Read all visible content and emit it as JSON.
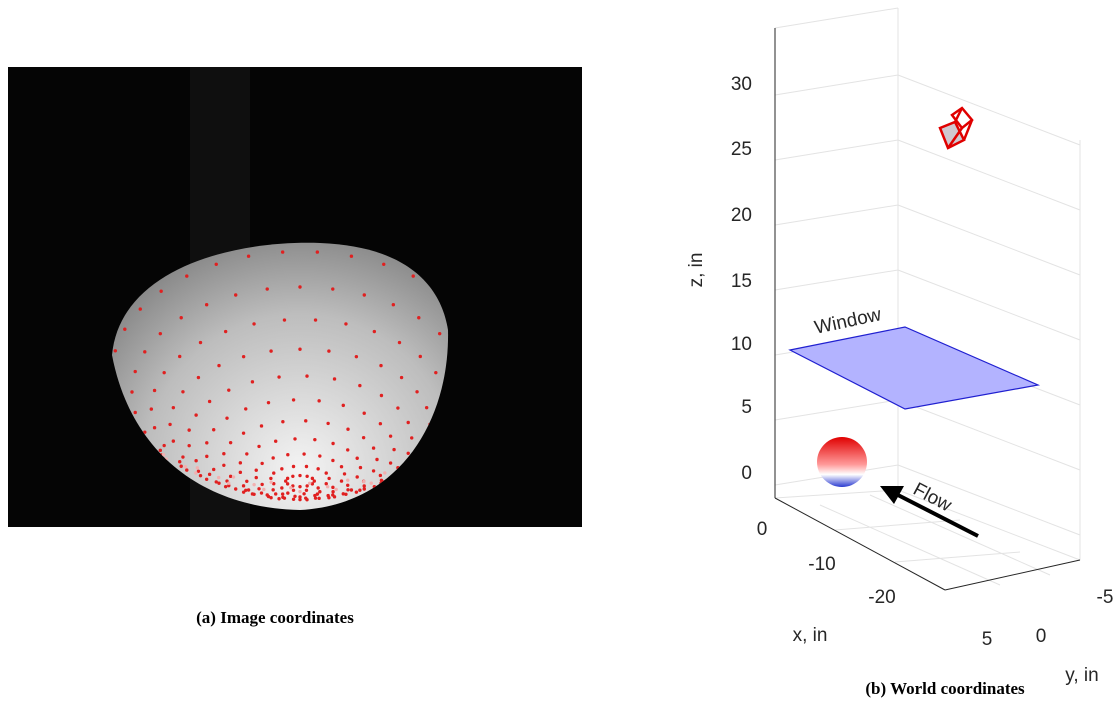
{
  "panel_a": {
    "caption": "(a) Image coordinates"
  },
  "panel_b": {
    "caption": "(b) World coordinates",
    "z_label": "z, in",
    "x_label": "x, in",
    "y_label": "y, in",
    "z_ticks": [
      30,
      25,
      20,
      15,
      10,
      5,
      0
    ],
    "x_ticks": [
      0,
      -10,
      -20
    ],
    "y_ticks": [
      5,
      0,
      -5
    ],
    "window_label": "Window",
    "flow_label": "Flow"
  }
}
